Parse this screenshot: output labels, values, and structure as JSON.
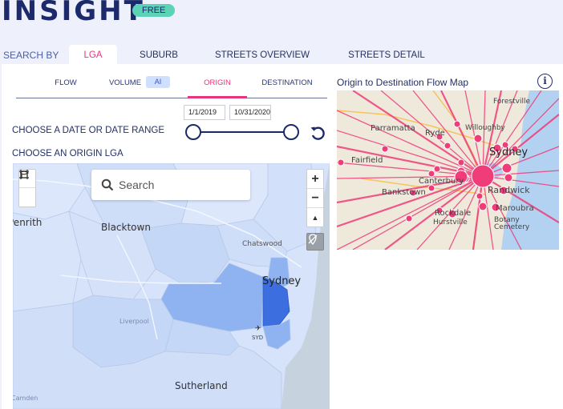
{
  "brand": {
    "name": "INSIGHT",
    "badge": "FREE"
  },
  "search_by": {
    "label": "SEARCH BY",
    "tabs": [
      {
        "label": "LGA",
        "active": true
      },
      {
        "label": "SUBURB",
        "active": false
      },
      {
        "label": "STREETS OVERVIEW",
        "active": false
      },
      {
        "label": "STREETS DETAIL",
        "active": false
      }
    ]
  },
  "subtabs": [
    {
      "label": "FLOW",
      "active": false
    },
    {
      "label": "VOLUME",
      "active": false,
      "badge": "AI"
    },
    {
      "label": "ORIGIN",
      "active": true
    },
    {
      "label": "DESTINATION",
      "active": false
    }
  ],
  "date_range": {
    "label": "CHOOSE A DATE OR DATE RANGE",
    "start": "1/1/2019",
    "end": "10/31/2020",
    "reset_icon": "refresh-icon"
  },
  "origin": {
    "label": "CHOOSE AN ORIGIN LGA"
  },
  "map": {
    "search_placeholder": "Search",
    "zoom_in": "+",
    "zoom_out": "−",
    "compass": "▲",
    "places": [
      "Penrith",
      "Blacktown",
      "Chatswood",
      "Sydney",
      "Liverpool",
      "SYD",
      "Sutherland",
      "Camden"
    ],
    "tool_icons": [
      "lasso-icon",
      "rectangle-select-icon",
      "compass-icon",
      "no-location-icon"
    ],
    "colors": {
      "selected": "#3c6ee0",
      "mid": "#8fb3f0",
      "light": "#c5d7f6",
      "water": "#c7d2df"
    }
  },
  "flow_map": {
    "title": "Origin to Destination Flow Map",
    "info_icon": "info-icon",
    "line_color": "#ee3d79",
    "places": [
      "Forestville",
      "Parramatta",
      "Ryde",
      "Willoughby",
      "Sydney",
      "Fairfield",
      "Canterbury",
      "Randwick",
      "Bankstown",
      "Rockdale",
      "Maroubra",
      "Hurstville",
      "Botany",
      "Cemetery"
    ]
  }
}
